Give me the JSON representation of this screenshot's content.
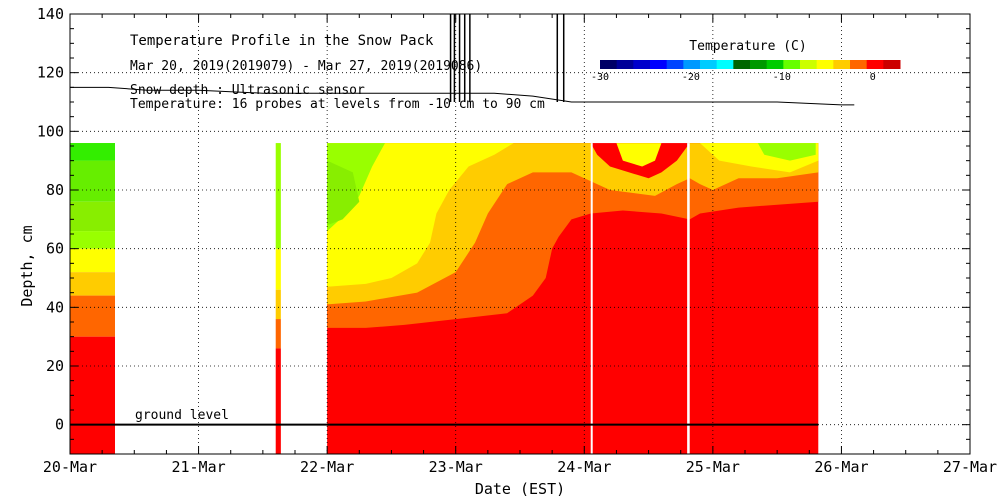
{
  "chart_data": {
    "type": "heatmap",
    "title": "Temperature Profile in the Snow Pack",
    "subtitle": "Mar 20, 2019(2019079) - Mar 27, 2019(2019086)",
    "snow_note": "Snow depth : Ultrasonic sensor",
    "temp_note": "Temperature: 16 probes at levels from -10 cm to 90 cm",
    "xlabel": "Date (EST)",
    "ylabel": "Depth, cm",
    "ground_label": "ground level",
    "x_tick_labels": [
      "20-Mar",
      "21-Mar",
      "22-Mar",
      "23-Mar",
      "24-Mar",
      "25-Mar",
      "26-Mar",
      "27-Mar"
    ],
    "xlim_days": [
      0,
      7
    ],
    "ylim": [
      -10,
      140
    ],
    "y_ticks": [
      0,
      20,
      40,
      60,
      80,
      100,
      120,
      140
    ],
    "grid": true,
    "colorbar": {
      "title": "Temperature (C)",
      "range": [
        -30,
        3
      ],
      "tick_labels": [
        "-30",
        "-20",
        "-10",
        "0"
      ],
      "tick_values": [
        -30,
        -20,
        -10,
        0
      ],
      "colors": [
        "#000066",
        "#000099",
        "#0000cc",
        "#0000ff",
        "#0044ff",
        "#0099ff",
        "#00ccff",
        "#00ffff",
        "#006600",
        "#009900",
        "#00cc00",
        "#66ff00",
        "#ccff00",
        "#ffff00",
        "#ffcc00",
        "#ff6600",
        "#ff0000",
        "#cc0000"
      ]
    },
    "temperature_color_map": {
      "green": -4,
      "yellow-green": -3.5,
      "yellow": -2.5,
      "gold": -1.5,
      "orange": -1,
      "red": 0
    },
    "snow_depth_cm": {
      "x_days": [
        0.0,
        0.3,
        0.6,
        1.0,
        1.5,
        2.0,
        2.5,
        3.0,
        3.3,
        3.6,
        3.9,
        4.2,
        4.6,
        5.0,
        5.5,
        6.0,
        6.1
      ],
      "values": [
        115,
        115,
        114,
        114,
        113,
        113,
        113,
        113,
        113,
        112,
        110,
        110,
        110,
        110,
        110,
        109,
        109
      ]
    },
    "snow_depth_spikes_days": [
      2.96,
      2.99,
      3.03,
      3.07,
      3.11,
      3.79,
      3.84
    ],
    "data_gaps_days": [
      [
        0.35,
        1.6
      ],
      [
        1.64,
        2.0
      ],
      [
        4.05,
        4.06
      ],
      [
        4.8,
        4.82
      ],
      [
        5.82,
        7.0
      ]
    ],
    "temperature_bands": [
      {
        "color": "red",
        "from_day": 0,
        "to_day": 7,
        "levels_cm": [
          [
            -10,
            26
          ]
        ]
      },
      {
        "color": "orange",
        "segments": "see chart"
      }
    ]
  }
}
